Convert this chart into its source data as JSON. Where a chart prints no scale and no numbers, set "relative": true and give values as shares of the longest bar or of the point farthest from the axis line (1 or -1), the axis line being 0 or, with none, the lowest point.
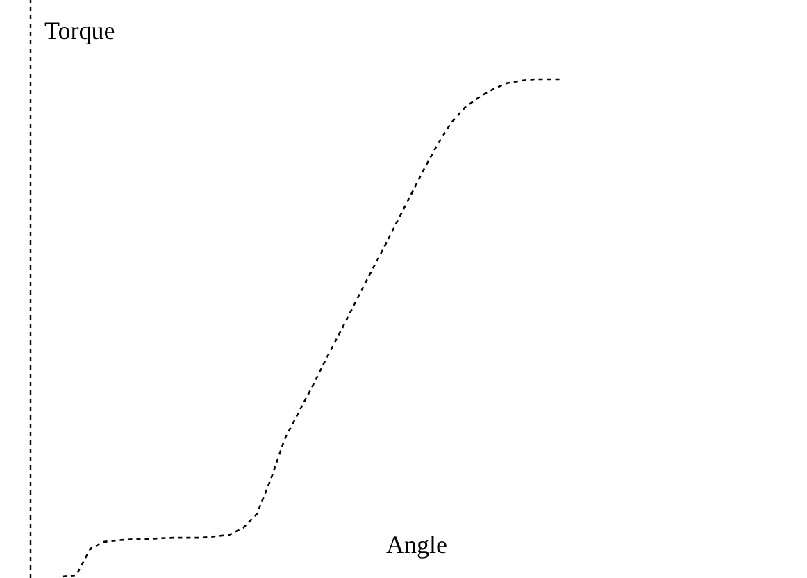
{
  "chart_data": {
    "type": "line",
    "relative": true,
    "ylabel": "Torque",
    "xlabel": "Angle",
    "line_style": "dotted",
    "marker": "none",
    "categories": [
      null,
      null,
      null,
      null,
      null,
      null,
      null,
      null,
      null,
      null,
      null,
      null,
      null,
      null,
      null,
      null,
      null,
      null,
      null,
      null,
      null,
      null,
      null,
      null,
      null,
      null,
      null,
      null,
      null,
      null,
      null,
      null,
      null,
      null,
      null,
      null,
      null
    ],
    "series": [
      {
        "color": "#000000",
        "values": [
          0,
          0.003,
          0.056,
          0.07,
          0.073,
          0.075,
          0.075,
          0.077,
          0.078,
          0.078,
          0.078,
          0.081,
          0.084,
          0.098,
          0.126,
          0.196,
          0.277,
          0.33,
          0.383,
          0.439,
          0.492,
          0.547,
          0.601,
          0.654,
          0.709,
          0.763,
          0.818,
          0.869,
          0.913,
          0.944,
          0.964,
          0.98,
          0.992,
          0.997,
          1,
          1,
          1
        ]
      }
    ]
  }
}
